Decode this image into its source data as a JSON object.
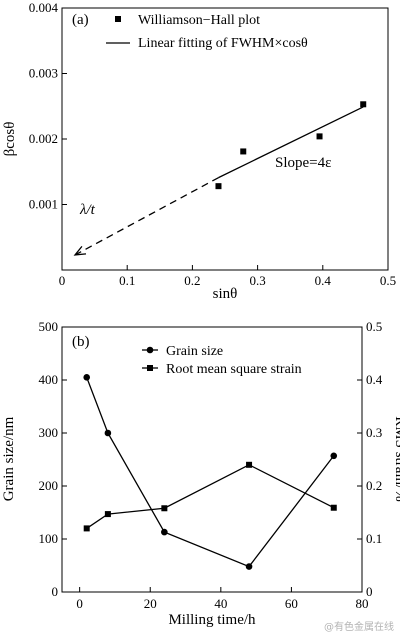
{
  "chart_data": [
    {
      "type": "scatter",
      "panel_label": "(a)",
      "xlabel": "sinθ",
      "ylabel": "βcosθ",
      "xlim": [
        0,
        0.5
      ],
      "ylim": [
        0,
        0.004
      ],
      "x_ticks": [
        "0",
        "0.1",
        "0.2",
        "0.3",
        "0.4",
        "0.5"
      ],
      "y_ticks": [
        "0.001",
        "0.002",
        "0.003",
        "0.004"
      ],
      "series": [
        {
          "name": "Williamson−Hall plot",
          "marker": "square",
          "x": [
            0.24,
            0.278,
            0.395,
            0.462
          ],
          "y": [
            0.00128,
            0.00181,
            0.00204,
            0.00253
          ]
        },
        {
          "name": "Linear fitting of FWHM×cosθ",
          "style": "line",
          "x": [
            0.24,
            0.462
          ],
          "y": [
            0.00141,
            0.00249
          ]
        }
      ],
      "extrapolation": {
        "style": "dashed-arrow",
        "x": [
          0.24,
          0.02
        ],
        "y": [
          0.00141,
          0.00023
        ]
      },
      "annotations": {
        "intercept": "λ/t",
        "slope": "Slope=4ε"
      },
      "legend_position": "top-right"
    },
    {
      "type": "line",
      "panel_label": "(b)",
      "xlabel": "Milling time/h",
      "ylabel": "Grain size/nm",
      "ylabel_right": "RMS strain/%",
      "xlim": [
        -5,
        80
      ],
      "ylim": [
        0,
        500
      ],
      "ylim_right": [
        0,
        0.5
      ],
      "x_ticks": [
        "0",
        "20",
        "40",
        "60",
        "80"
      ],
      "y_ticks": [
        "0",
        "100",
        "200",
        "300",
        "400",
        "500"
      ],
      "y_ticks_right": [
        "0",
        "0.1",
        "0.2",
        "0.3",
        "0.4",
        "0.5"
      ],
      "series": [
        {
          "name": "Grain size",
          "marker": "circle",
          "axis": "left",
          "x": [
            2,
            8,
            24,
            48,
            72
          ],
          "y": [
            405,
            300,
            113,
            48,
            257
          ]
        },
        {
          "name": "Root mean square strain",
          "marker": "square",
          "axis": "right",
          "x": [
            2,
            8,
            24,
            48,
            72
          ],
          "y": [
            0.12,
            0.147,
            0.158,
            0.24,
            0.159
          ]
        }
      ],
      "legend_position": "top-center"
    }
  ],
  "watermark": "@有色金属在线"
}
